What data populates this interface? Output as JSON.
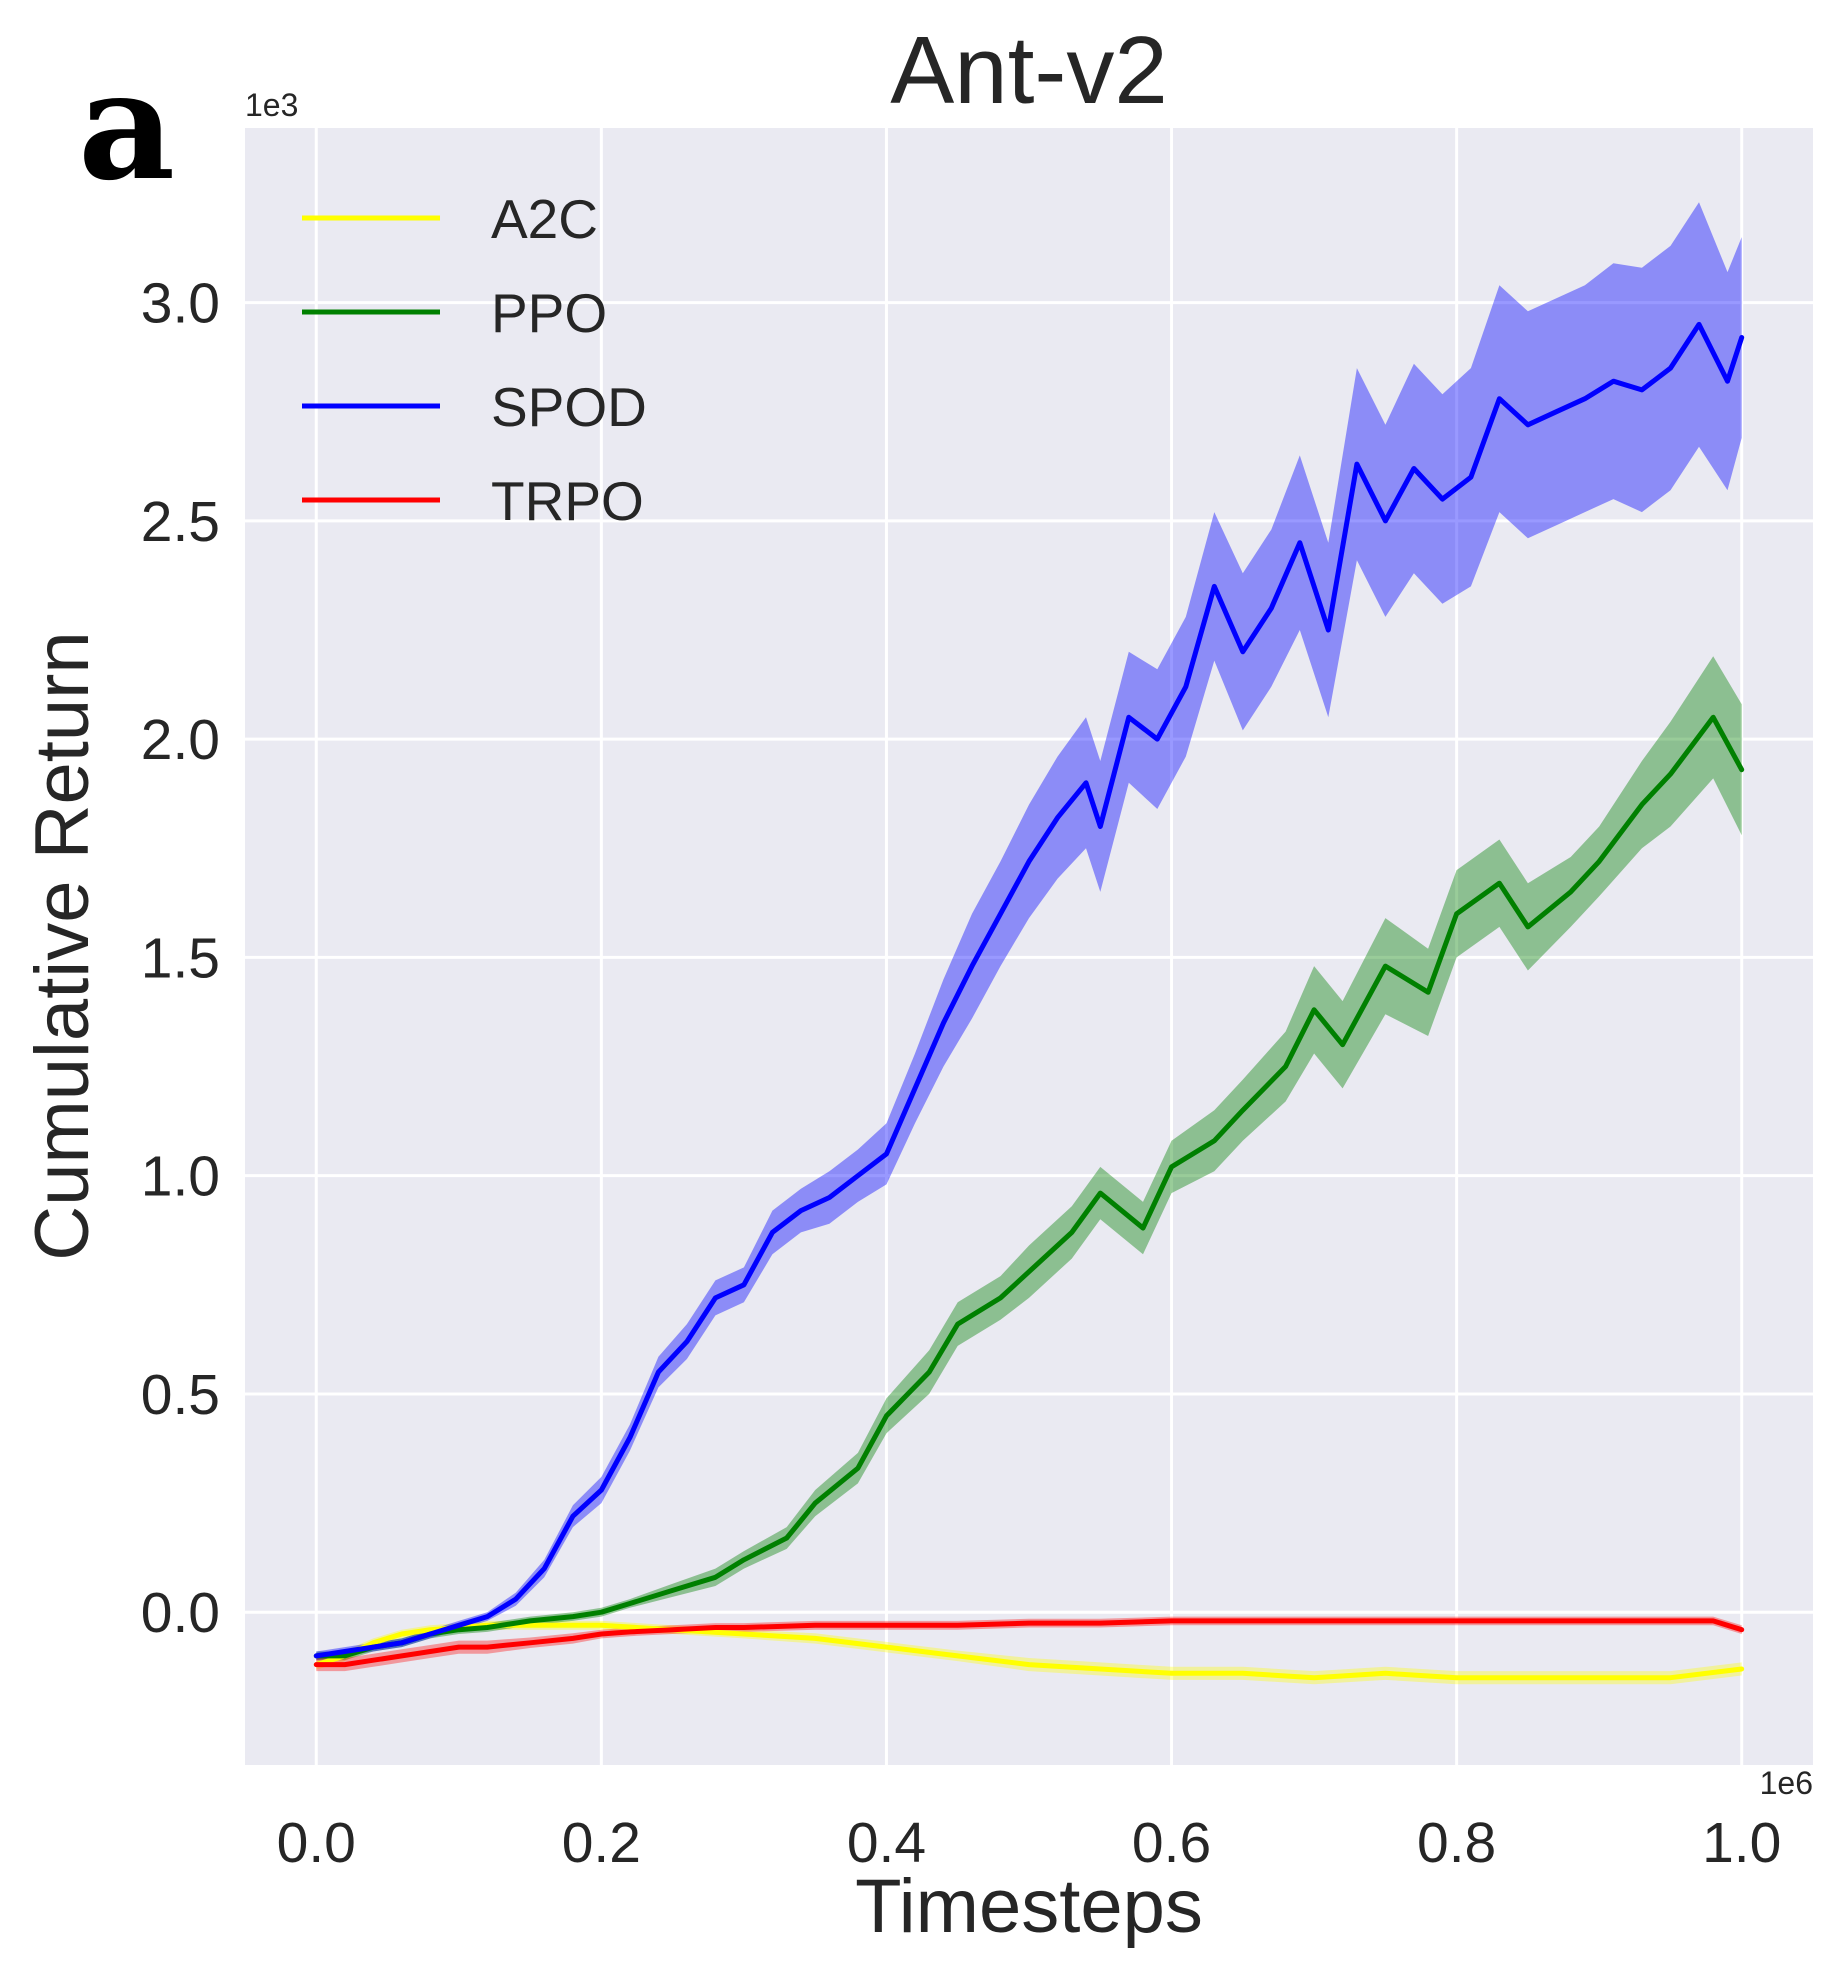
{
  "chart_data": {
    "type": "line",
    "panel_label": "a",
    "title": "Ant-v2",
    "xlabel": "Timesteps",
    "ylabel": "Cumulative Return",
    "x_scale_label": "1e6",
    "y_scale_label": "1e3",
    "xlim": [
      -0.05,
      1.05
    ],
    "ylim": [
      -0.35,
      3.4
    ],
    "xticks": [
      0.0,
      0.2,
      0.4,
      0.6,
      0.8,
      1.0
    ],
    "xtick_labels": [
      "0.0",
      "0.2",
      "0.4",
      "0.6",
      "0.8",
      "1.0"
    ],
    "yticks": [
      0.0,
      0.5,
      1.0,
      1.5,
      2.0,
      2.5,
      3.0
    ],
    "ytick_labels": [
      "0.0",
      "0.5",
      "1.0",
      "1.5",
      "2.0",
      "2.5",
      "3.0"
    ],
    "grid": true,
    "legend_position": "top-left",
    "series": [
      {
        "name": "A2C",
        "color": "#ffff00",
        "band_opacity": 0.35,
        "x": [
          0.0,
          0.02,
          0.04,
          0.06,
          0.08,
          0.1,
          0.12,
          0.15,
          0.2,
          0.25,
          0.3,
          0.35,
          0.4,
          0.45,
          0.5,
          0.55,
          0.6,
          0.65,
          0.7,
          0.75,
          0.8,
          0.85,
          0.9,
          0.95,
          1.0
        ],
        "values": [
          -0.12,
          -0.1,
          -0.07,
          -0.05,
          -0.04,
          -0.035,
          -0.03,
          -0.03,
          -0.03,
          -0.04,
          -0.05,
          -0.06,
          -0.08,
          -0.1,
          -0.12,
          -0.13,
          -0.14,
          -0.14,
          -0.15,
          -0.14,
          -0.15,
          -0.15,
          -0.15,
          -0.15,
          -0.13
        ],
        "band": [
          0.012,
          0.012,
          0.01,
          0.01,
          0.01,
          0.01,
          0.01,
          0.01,
          0.01,
          0.01,
          0.01,
          0.012,
          0.012,
          0.012,
          0.015,
          0.015,
          0.015,
          0.015,
          0.015,
          0.015,
          0.015,
          0.015,
          0.015,
          0.015,
          0.015
        ]
      },
      {
        "name": "PPO",
        "color": "#008000",
        "band_opacity": 0.4,
        "x": [
          0.0,
          0.02,
          0.04,
          0.06,
          0.08,
          0.1,
          0.12,
          0.15,
          0.18,
          0.2,
          0.22,
          0.25,
          0.28,
          0.3,
          0.33,
          0.35,
          0.38,
          0.4,
          0.43,
          0.45,
          0.48,
          0.5,
          0.53,
          0.55,
          0.58,
          0.6,
          0.63,
          0.65,
          0.68,
          0.7,
          0.72,
          0.75,
          0.78,
          0.8,
          0.83,
          0.85,
          0.88,
          0.9,
          0.93,
          0.95,
          0.98,
          1.0
        ],
        "values": [
          -0.1,
          -0.1,
          -0.08,
          -0.07,
          -0.05,
          -0.04,
          -0.035,
          -0.02,
          -0.01,
          0.0,
          0.02,
          0.05,
          0.08,
          0.12,
          0.17,
          0.25,
          0.33,
          0.45,
          0.55,
          0.66,
          0.72,
          0.78,
          0.87,
          0.96,
          0.88,
          1.02,
          1.08,
          1.15,
          1.25,
          1.38,
          1.3,
          1.48,
          1.42,
          1.6,
          1.67,
          1.57,
          1.65,
          1.72,
          1.85,
          1.92,
          2.05,
          1.93
        ],
        "band": [
          0.01,
          0.01,
          0.01,
          0.01,
          0.01,
          0.01,
          0.01,
          0.01,
          0.01,
          0.01,
          0.01,
          0.015,
          0.02,
          0.02,
          0.025,
          0.03,
          0.035,
          0.04,
          0.05,
          0.05,
          0.05,
          0.06,
          0.06,
          0.06,
          0.06,
          0.06,
          0.07,
          0.07,
          0.08,
          0.1,
          0.1,
          0.11,
          0.1,
          0.1,
          0.1,
          0.1,
          0.08,
          0.08,
          0.1,
          0.12,
          0.14,
          0.15
        ]
      },
      {
        "name": "SPOD",
        "color": "#0000ff",
        "band_opacity": 0.4,
        "x": [
          0.0,
          0.02,
          0.04,
          0.06,
          0.08,
          0.1,
          0.12,
          0.14,
          0.16,
          0.18,
          0.2,
          0.22,
          0.24,
          0.26,
          0.28,
          0.3,
          0.32,
          0.34,
          0.36,
          0.38,
          0.4,
          0.42,
          0.44,
          0.46,
          0.48,
          0.5,
          0.52,
          0.54,
          0.55,
          0.57,
          0.59,
          0.61,
          0.63,
          0.65,
          0.67,
          0.69,
          0.71,
          0.73,
          0.75,
          0.77,
          0.79,
          0.81,
          0.83,
          0.85,
          0.87,
          0.89,
          0.91,
          0.93,
          0.95,
          0.97,
          0.99,
          1.0
        ],
        "values": [
          -0.1,
          -0.09,
          -0.08,
          -0.07,
          -0.05,
          -0.03,
          -0.01,
          0.03,
          0.1,
          0.22,
          0.28,
          0.4,
          0.55,
          0.62,
          0.72,
          0.75,
          0.87,
          0.92,
          0.95,
          1.0,
          1.05,
          1.2,
          1.35,
          1.48,
          1.6,
          1.72,
          1.82,
          1.9,
          1.8,
          2.05,
          2.0,
          2.12,
          2.35,
          2.2,
          2.3,
          2.45,
          2.25,
          2.63,
          2.5,
          2.62,
          2.55,
          2.6,
          2.78,
          2.72,
          2.75,
          2.78,
          2.82,
          2.8,
          2.85,
          2.95,
          2.82,
          2.92
        ],
        "band": [
          0.01,
          0.01,
          0.01,
          0.01,
          0.01,
          0.01,
          0.01,
          0.015,
          0.02,
          0.025,
          0.03,
          0.03,
          0.035,
          0.04,
          0.04,
          0.04,
          0.05,
          0.05,
          0.06,
          0.06,
          0.07,
          0.08,
          0.1,
          0.12,
          0.12,
          0.13,
          0.14,
          0.15,
          0.15,
          0.15,
          0.16,
          0.16,
          0.17,
          0.18,
          0.18,
          0.2,
          0.2,
          0.22,
          0.22,
          0.24,
          0.24,
          0.25,
          0.26,
          0.26,
          0.26,
          0.26,
          0.27,
          0.28,
          0.28,
          0.28,
          0.25,
          0.23
        ]
      },
      {
        "name": "TRPO",
        "color": "#ff0000",
        "band_opacity": 0.35,
        "x": [
          0.0,
          0.02,
          0.04,
          0.06,
          0.08,
          0.1,
          0.12,
          0.15,
          0.18,
          0.2,
          0.22,
          0.25,
          0.28,
          0.3,
          0.35,
          0.4,
          0.45,
          0.5,
          0.55,
          0.6,
          0.65,
          0.7,
          0.75,
          0.8,
          0.85,
          0.9,
          0.95,
          0.98,
          1.0
        ],
        "values": [
          -0.12,
          -0.12,
          -0.11,
          -0.1,
          -0.09,
          -0.08,
          -0.08,
          -0.07,
          -0.06,
          -0.05,
          -0.045,
          -0.04,
          -0.035,
          -0.035,
          -0.03,
          -0.03,
          -0.03,
          -0.025,
          -0.025,
          -0.02,
          -0.02,
          -0.02,
          -0.02,
          -0.02,
          -0.02,
          -0.02,
          -0.02,
          -0.02,
          -0.04
        ],
        "band": [
          0.015,
          0.015,
          0.015,
          0.015,
          0.015,
          0.015,
          0.015,
          0.012,
          0.012,
          0.01,
          0.01,
          0.01,
          0.01,
          0.01,
          0.01,
          0.01,
          0.01,
          0.01,
          0.01,
          0.01,
          0.01,
          0.01,
          0.01,
          0.01,
          0.01,
          0.01,
          0.01,
          0.01,
          0.01
        ]
      }
    ]
  }
}
